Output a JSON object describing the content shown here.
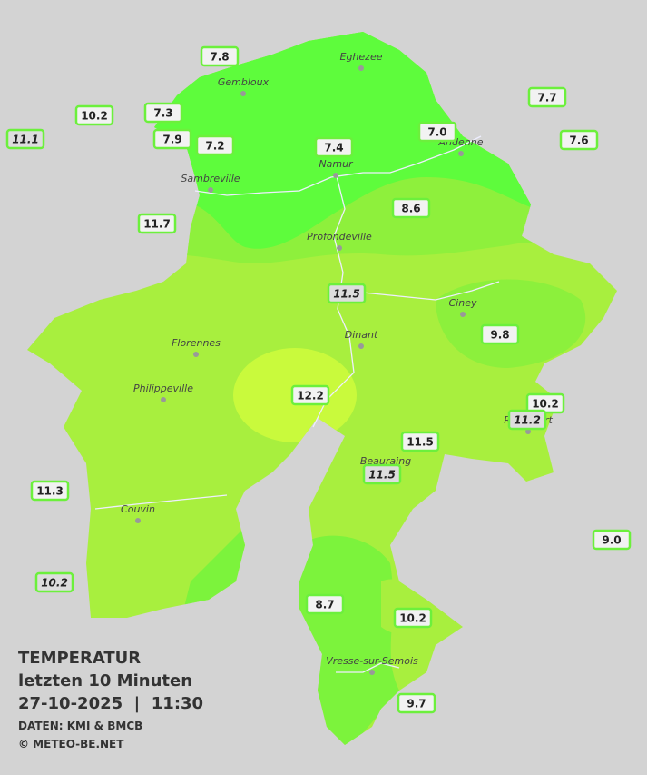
{
  "title": "TEMPERATUR",
  "subtitle": "letzten 10 Minuten",
  "datetime": "27-10-2025  |  11:30",
  "source": "DATEN: KMI & BMCB",
  "copyright": "© METEO-BE.NET",
  "towns": [
    "Eghezee",
    "Gembloux",
    "Andenne",
    "Namur",
    "Sambreville",
    "Profondeville",
    "Ciney",
    "Dinant",
    "Florennes",
    "Philippeville",
    "Rochefort",
    "Beauraing",
    "Couvin",
    "Vresse-sur-Semois"
  ],
  "stations": [
    "7.8",
    "10.2",
    "7.3",
    "11.1",
    "7.9",
    "7.2",
    "7.4",
    "7.0",
    "7.7",
    "7.6",
    "8.6",
    "11.7",
    "11.5",
    "9.8",
    "12.2",
    "10.2",
    "11.2",
    "11.5",
    "11.5",
    "11.3",
    "9.0",
    "10.2",
    "8.7",
    "10.2",
    "9.7"
  ]
}
